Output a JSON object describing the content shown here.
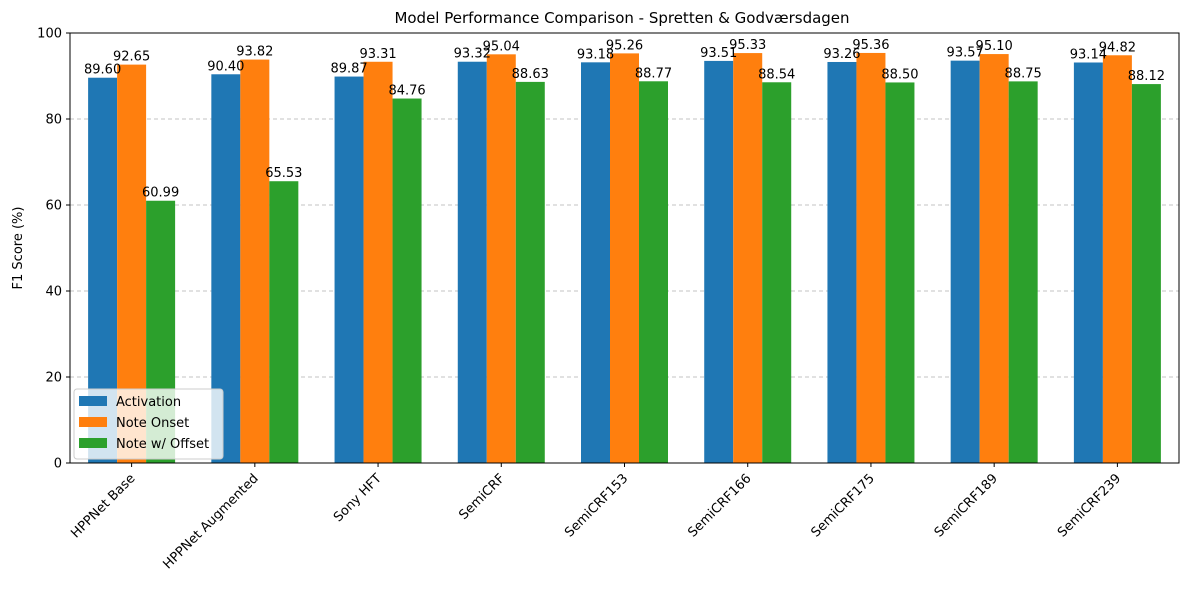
{
  "chart_data": {
    "type": "bar",
    "title": "Model Performance Comparison -  Spretten & Godværsdagen",
    "xlabel": "",
    "ylabel": "F1 Score (%)",
    "ylim": [
      0,
      100
    ],
    "yticks": [
      "0",
      "20",
      "40",
      "60",
      "80",
      "100"
    ],
    "grid": "horizontal dashed",
    "legend_position": "lower-left",
    "categories": [
      "HPPNet Base",
      "HPPNet Augmented",
      "Sony HFT",
      "SemiCRF",
      "SemiCRF153",
      "SemiCRF166",
      "SemiCRF175",
      "SemiCRF189",
      "SemiCRF239"
    ],
    "series": [
      {
        "name": "Activation",
        "color": "#1f77b4",
        "values": [
          89.6,
          90.4,
          89.87,
          93.32,
          93.18,
          93.51,
          93.26,
          93.57,
          93.14
        ]
      },
      {
        "name": "Note Onset",
        "color": "#ff7f0e",
        "values": [
          92.65,
          93.82,
          93.31,
          95.04,
          95.26,
          95.33,
          95.36,
          95.1,
          94.82
        ]
      },
      {
        "name": "Note w/ Offset",
        "color": "#2ca02c",
        "values": [
          60.99,
          65.53,
          84.76,
          88.63,
          88.77,
          88.54,
          88.5,
          88.75,
          88.12
        ]
      }
    ]
  }
}
